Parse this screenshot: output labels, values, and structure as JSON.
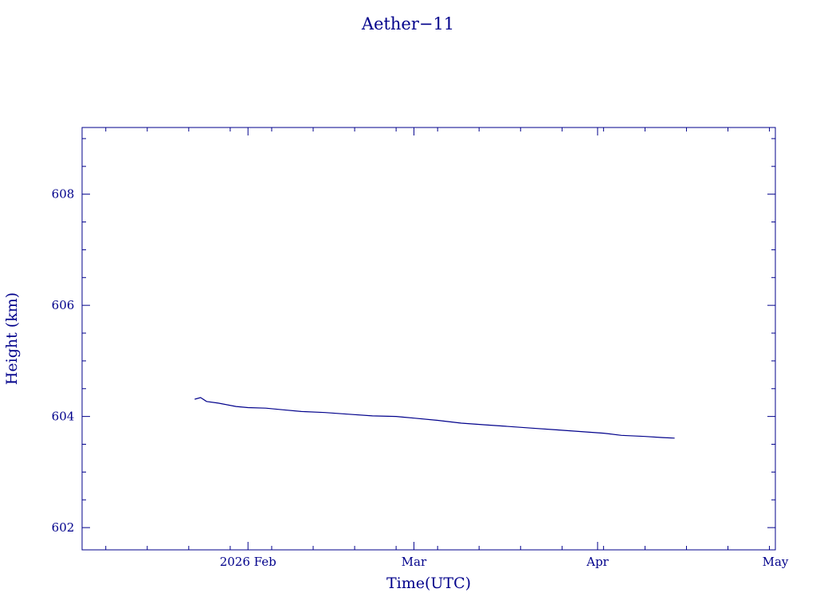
{
  "chart_data": {
    "type": "line",
    "title": "Aether−11",
    "xlabel": "Time(UTC)",
    "ylabel": "Height (km)",
    "color": "#00008b",
    "x_axis": {
      "type": "date",
      "range": [
        "2026-01-04",
        "2026-05-01"
      ],
      "ticks": [
        {
          "date": "2026-02-01",
          "label": "2026 Feb"
        },
        {
          "date": "2026-03-01",
          "label": "Mar"
        },
        {
          "date": "2026-04-01",
          "label": "Apr"
        },
        {
          "date": "2026-05-01",
          "label": "May"
        }
      ]
    },
    "y_axis": {
      "range": [
        601.6,
        609.2
      ],
      "ticks": [
        602,
        604,
        606,
        608
      ]
    },
    "grid": false,
    "legend": "none",
    "series": [
      {
        "points": [
          {
            "x": "2026-01-23",
            "y": 604.31
          },
          {
            "x": "2026-01-24",
            "y": 604.34
          },
          {
            "x": "2026-01-25",
            "y": 604.27
          },
          {
            "x": "2026-01-27",
            "y": 604.24
          },
          {
            "x": "2026-01-30",
            "y": 604.18
          },
          {
            "x": "2026-02-01",
            "y": 604.16
          },
          {
            "x": "2026-02-04",
            "y": 604.15
          },
          {
            "x": "2026-02-07",
            "y": 604.12
          },
          {
            "x": "2026-02-10",
            "y": 604.09
          },
          {
            "x": "2026-02-14",
            "y": 604.07
          },
          {
            "x": "2026-02-18",
            "y": 604.04
          },
          {
            "x": "2026-02-22",
            "y": 604.01
          },
          {
            "x": "2026-02-26",
            "y": 604.0
          },
          {
            "x": "2026-03-01",
            "y": 603.97
          },
          {
            "x": "2026-03-05",
            "y": 603.93
          },
          {
            "x": "2026-03-09",
            "y": 603.88
          },
          {
            "x": "2026-03-13",
            "y": 603.85
          },
          {
            "x": "2026-03-17",
            "y": 603.82
          },
          {
            "x": "2026-03-21",
            "y": 603.79
          },
          {
            "x": "2026-03-25",
            "y": 603.76
          },
          {
            "x": "2026-03-29",
            "y": 603.73
          },
          {
            "x": "2026-04-02",
            "y": 603.7
          },
          {
            "x": "2026-04-05",
            "y": 603.66
          },
          {
            "x": "2026-04-09",
            "y": 603.64
          },
          {
            "x": "2026-04-12",
            "y": 603.62
          },
          {
            "x": "2026-04-14",
            "y": 603.61
          }
        ]
      }
    ]
  }
}
